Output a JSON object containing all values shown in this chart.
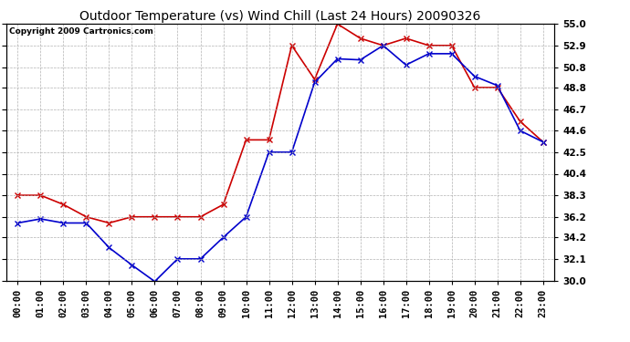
{
  "title": "Outdoor Temperature (vs) Wind Chill (Last 24 Hours) 20090326",
  "copyright": "Copyright 2009 Cartronics.com",
  "hours": [
    "00:00",
    "01:00",
    "02:00",
    "03:00",
    "04:00",
    "05:00",
    "06:00",
    "07:00",
    "08:00",
    "09:00",
    "10:00",
    "11:00",
    "12:00",
    "13:00",
    "14:00",
    "15:00",
    "16:00",
    "17:00",
    "18:00",
    "19:00",
    "20:00",
    "21:00",
    "22:00",
    "23:00"
  ],
  "temp": [
    38.3,
    38.3,
    37.4,
    36.2,
    35.6,
    36.2,
    36.2,
    36.2,
    36.2,
    37.4,
    43.7,
    43.7,
    52.9,
    49.6,
    55.0,
    53.6,
    52.9,
    53.6,
    52.9,
    52.9,
    48.8,
    48.8,
    45.5,
    43.5
  ],
  "wind_chill": [
    35.6,
    36.0,
    35.6,
    35.6,
    33.2,
    31.5,
    29.9,
    32.1,
    32.1,
    34.2,
    36.2,
    42.5,
    42.5,
    49.3,
    51.6,
    51.5,
    52.9,
    51.0,
    52.1,
    52.1,
    49.9,
    49.0,
    44.6,
    43.5
  ],
  "temp_color": "#cc0000",
  "wind_chill_color": "#0000cc",
  "ylim": [
    30.0,
    55.0
  ],
  "yticks": [
    30.0,
    32.1,
    34.2,
    36.2,
    38.3,
    40.4,
    42.5,
    44.6,
    46.7,
    48.8,
    50.8,
    52.9,
    55.0
  ],
  "bg_color": "#ffffff",
  "plot_bg_color": "#ffffff",
  "grid_color": "#aaaaaa",
  "title_fontsize": 10,
  "copyright_fontsize": 6.5,
  "tick_fontsize": 7.5,
  "line_width": 1.2,
  "marker_size": 4
}
